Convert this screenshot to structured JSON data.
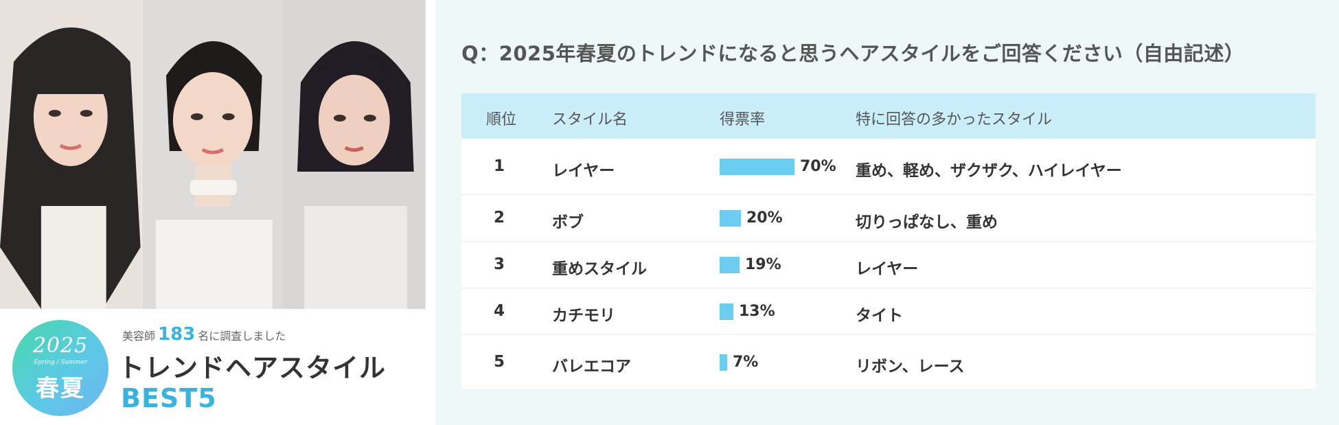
{
  "badge": {
    "year": "2025",
    "season_en": "Spring / Summer",
    "season_jp": "春夏"
  },
  "survey": {
    "prefix": "美容師",
    "count": "183",
    "suffix": "名に調査しました"
  },
  "heading": {
    "title": "トレンドヘアスタイル",
    "subtitle": "BEST5"
  },
  "question": "Q：2025年春夏のトレンドになると思うヘアスタイルをご回答ください（自由記述）",
  "table": {
    "headers": {
      "rank": "順位",
      "name": "スタイル名",
      "rate": "得票率",
      "note": "特に回答の多かったスタイル"
    }
  },
  "chart_data": {
    "type": "bar",
    "orientation": "horizontal",
    "categories": [
      "レイヤー",
      "ボブ",
      "重めスタイル",
      "カチモリ",
      "バレエコア"
    ],
    "ranks": [
      "1",
      "2",
      "3",
      "4",
      "5"
    ],
    "values": [
      70,
      20,
      19,
      13,
      7
    ],
    "value_labels": [
      "70%",
      "20%",
      "19%",
      "13%",
      "7%"
    ],
    "notes": [
      "重め、軽め、ザクザク、ハイレイヤー",
      "切りっぱなし、重め",
      "レイヤー",
      "タイト",
      "リボン、レース"
    ],
    "xlim": [
      0,
      100
    ],
    "bar_color": "#6ccdf1"
  },
  "colors": {
    "accent": "#36b4dd",
    "header_bg": "#cbeefb",
    "panel_bg": "#eef8f9"
  }
}
